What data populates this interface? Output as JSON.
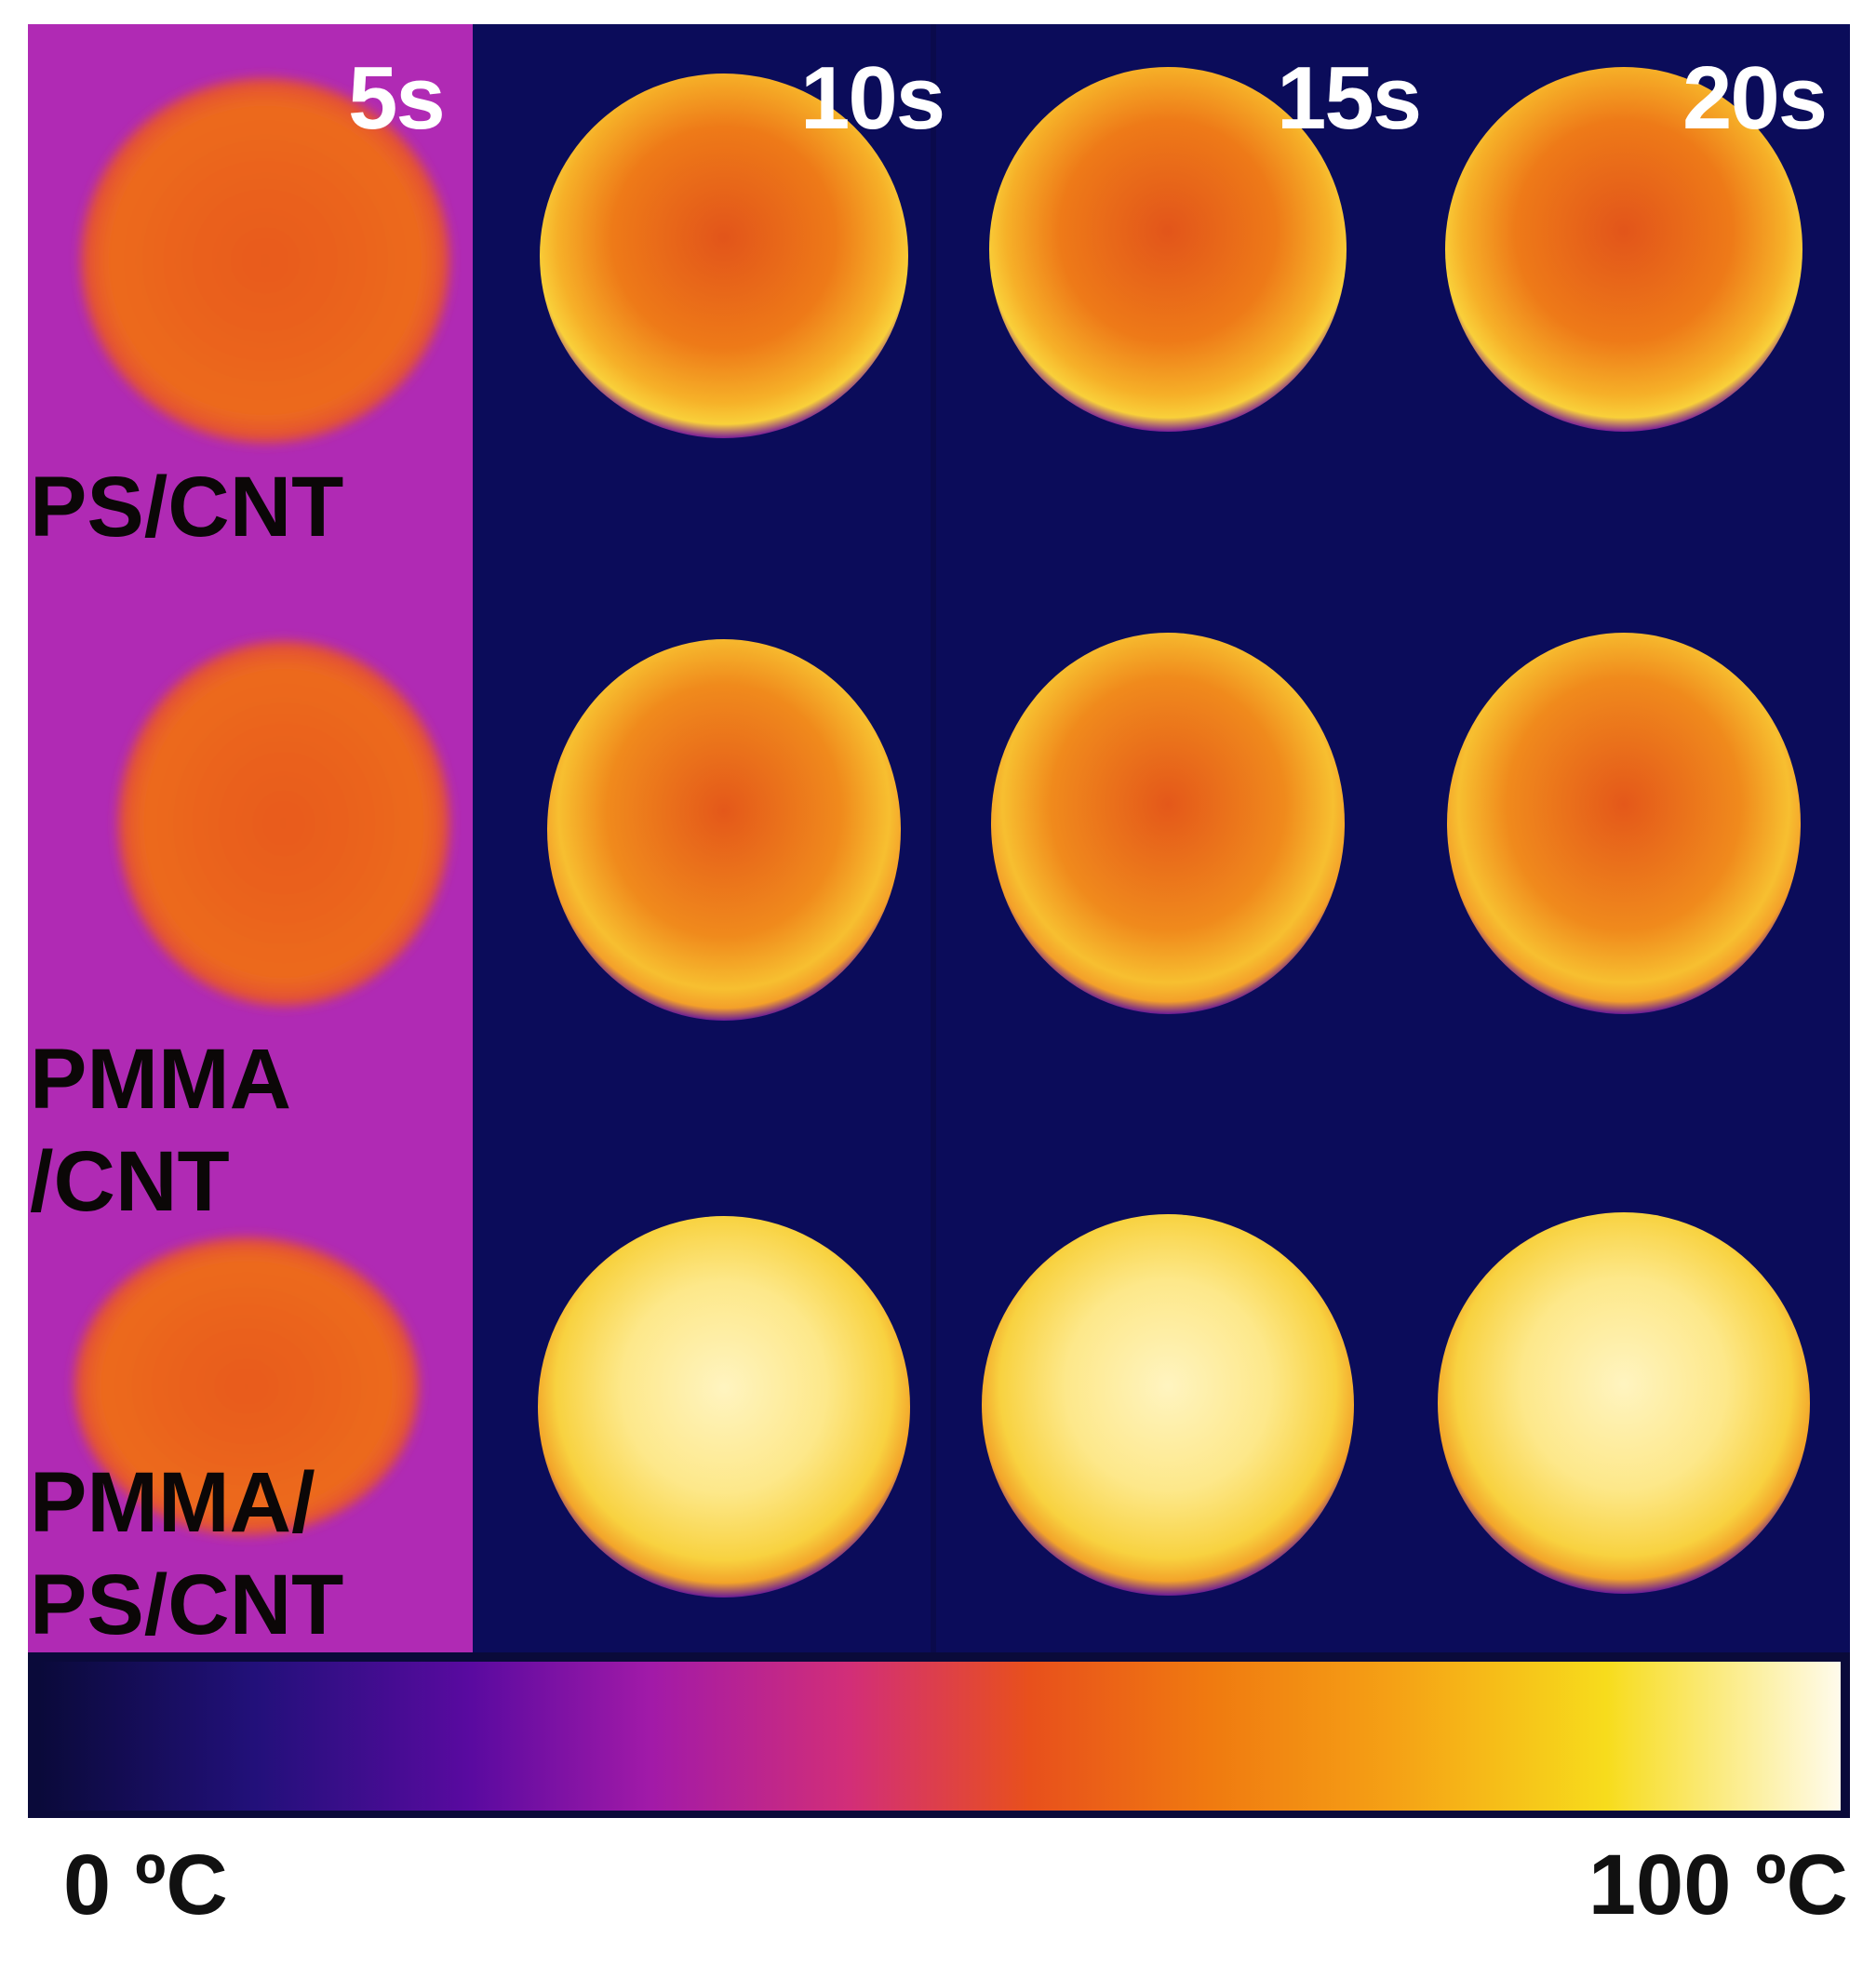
{
  "time_labels": [
    "5s",
    "10s",
    "15s",
    "20s"
  ],
  "sample_labels": [
    {
      "line1": "PS/CNT",
      "line2": ""
    },
    {
      "line1": "PMMA",
      "line2": "/CNT"
    },
    {
      "line1": "PMMA/",
      "line2": "PS/CNT"
    }
  ],
  "colorbar": {
    "min_label": "0 ºC",
    "max_label": "100 ºC",
    "palette": "inferno/ironbow",
    "stops": [
      "#0a0a3a",
      "#2b0c8a",
      "#6e0aa6",
      "#a81aa0",
      "#d0306e",
      "#e8501a",
      "#f07a10",
      "#f5a015",
      "#f8dc1e",
      "#fffbe8"
    ]
  },
  "colors": {
    "first_column_background": "#b02ab4",
    "background": "#0b0c5a",
    "cool_disc": "#e85a1c",
    "warm_disc": "#f3a52a",
    "hot_disc": "#fde38a"
  }
}
